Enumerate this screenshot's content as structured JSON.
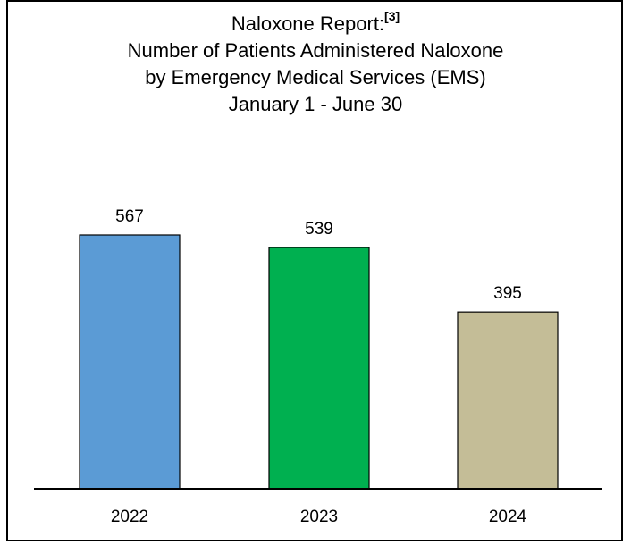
{
  "chart_data": {
    "type": "bar",
    "title": "Naloxone Report:",
    "title_superscript": "[3]",
    "subtitle_lines": [
      "Number of Patients Administered Naloxone",
      "by Emergency Medical Services (EMS)",
      "January 1 - June 30"
    ],
    "categories": [
      "2022",
      "2023",
      "2024"
    ],
    "values": [
      567,
      539,
      395
    ],
    "bar_colors": [
      "#5b9bd5",
      "#00b050",
      "#c4bd97"
    ],
    "data_labels": [
      "567",
      "539",
      "395"
    ],
    "xlabel": "",
    "ylabel": "",
    "ylim": [
      0,
      700
    ],
    "grid": false,
    "legend": "none"
  }
}
